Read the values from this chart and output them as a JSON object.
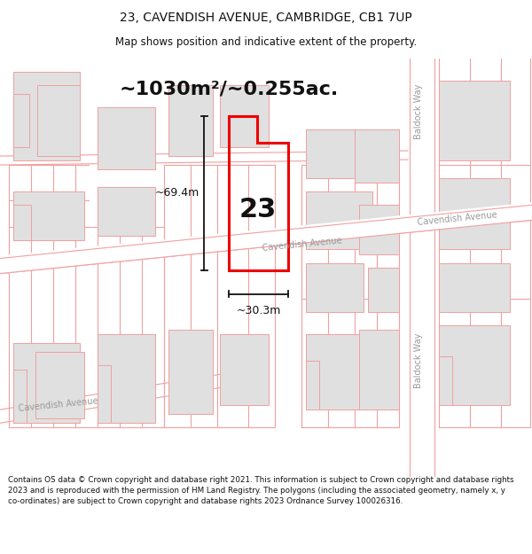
{
  "title_line1": "23, CAVENDISH AVENUE, CAMBRIDGE, CB1 7UP",
  "title_line2": "Map shows position and indicative extent of the property.",
  "area_text": "~1030m²/~0.255ac.",
  "label_number": "23",
  "dim_height": "~69.4m",
  "dim_width": "~30.3m",
  "footer_text": "Contains OS data © Crown copyright and database right 2021. This information is subject to Crown copyright and database rights 2023 and is reproduced with the permission of HM Land Registry. The polygons (including the associated geometry, namely x, y co-ordinates) are subject to Crown copyright and database rights 2023 Ordnance Survey 100026316.",
  "bg_color": "#ffffff",
  "map_bg": "#ffffff",
  "building_fill": "#e0e0e0",
  "building_edge": "#f0a0a0",
  "road_line": "#f0a0a0",
  "property_color": "#ee0000",
  "text_color": "#111111",
  "dim_color": "#111111",
  "street_color": "#999999",
  "title_fontsize": 10,
  "subtitle_fontsize": 8.5,
  "area_fontsize": 16,
  "number_fontsize": 22,
  "dim_label_fontsize": 9,
  "street_fontsize": 7,
  "footer_fontsize": 6.3
}
